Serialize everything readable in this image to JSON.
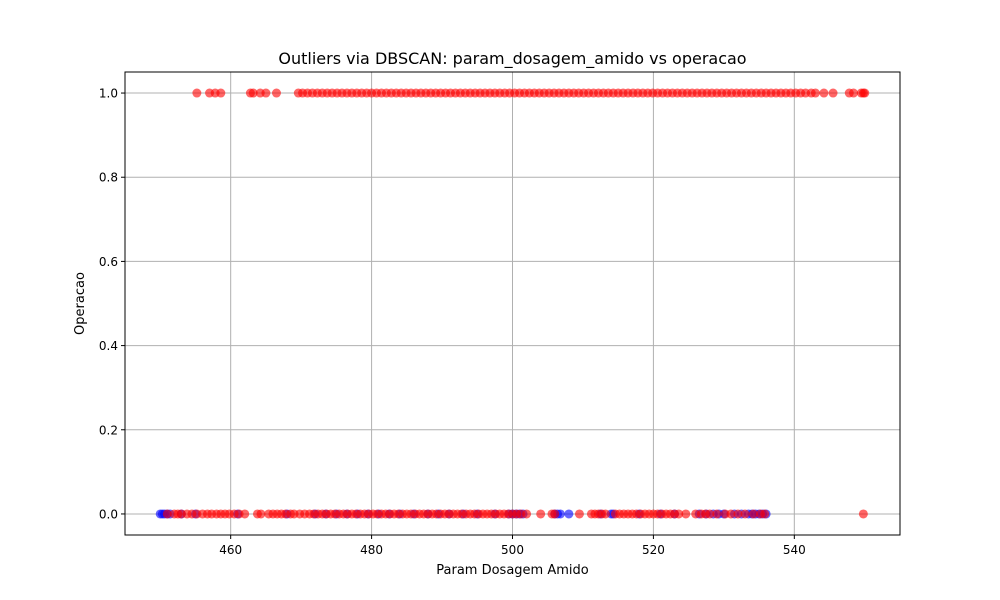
{
  "chart_data": {
    "type": "scatter",
    "title": "Outliers via DBSCAN: param_dosagem_amido vs operacao",
    "xlabel": "Param Dosagem Amido",
    "ylabel": "Operacao",
    "xlim": [
      445,
      555
    ],
    "ylim": [
      -0.05,
      1.05
    ],
    "xticks": [
      460,
      480,
      500,
      520,
      540
    ],
    "yticks": [
      0.0,
      0.2,
      0.4,
      0.6,
      0.8,
      1.0
    ],
    "ytick_labels": [
      "0.0",
      "0.2",
      "0.4",
      "0.6",
      "0.8",
      "1.0"
    ],
    "grid": true,
    "colors": {
      "blue": "#0000ff",
      "red": "#ff0000",
      "alpha": 0.6
    },
    "series": [
      {
        "color": "blue",
        "x": [
          450.0,
          450.3,
          450.6,
          451.0,
          451.4,
          453.0,
          455.0,
          461.0,
          468.0,
          472.0,
          473.5,
          475.0,
          476.5,
          478.0,
          479.5,
          481.0,
          482.5,
          484.0,
          486.0,
          488.0,
          489.5,
          491.0,
          493.0,
          495.0,
          497.5,
          499.5,
          500.0,
          500.5,
          501.0,
          501.5,
          506.0,
          506.4,
          506.8,
          508.0,
          512.5,
          514.0,
          514.3,
          518.0,
          521.0,
          523.0,
          526.5,
          527.5,
          528.5,
          529.3,
          530.0,
          531.5,
          532.5,
          533.5,
          534.0,
          534.5,
          535.0,
          535.5,
          536.0
        ],
        "y": [
          0,
          0,
          0,
          0,
          0,
          0,
          0,
          0,
          0,
          0,
          0,
          0,
          0,
          0,
          0,
          0,
          0,
          0,
          0,
          0,
          0,
          0,
          0,
          0,
          0,
          0,
          0,
          0,
          0,
          0,
          0,
          0,
          0,
          0,
          0,
          0,
          0,
          0,
          0,
          0,
          0,
          0,
          0,
          0,
          0,
          0,
          0,
          0,
          0,
          0,
          0,
          0,
          0
        ]
      },
      {
        "color": "red",
        "x": [
          451.0,
          452.0,
          452.5,
          453.0,
          453.8,
          454.5,
          455.2,
          456.0,
          456.7,
          457.3,
          458.0,
          458.6,
          459.2,
          459.8,
          460.5,
          461.2,
          462.0,
          463.8,
          464.3,
          465.4,
          466.0,
          466.6,
          467.2,
          467.8,
          468.5,
          469.0,
          469.8,
          470.5,
          471.2,
          471.8,
          472.4,
          473.0,
          473.6,
          474.2,
          474.8,
          475.4,
          476.0,
          476.6,
          477.2,
          477.8,
          478.4,
          479.0,
          479.6,
          480.2,
          480.8,
          481.4,
          482.0,
          482.6,
          483.2,
          483.8,
          484.4,
          485.0,
          485.6,
          486.2,
          486.8,
          487.4,
          488.0,
          488.6,
          489.2,
          489.8,
          490.4,
          491.0,
          491.6,
          492.2,
          492.8,
          493.4,
          494.0,
          494.6,
          495.2,
          495.8,
          496.4,
          497.0,
          497.6,
          498.2,
          498.8,
          499.4,
          500.0,
          500.6,
          501.2,
          502.0,
          504.0,
          505.6,
          506.0,
          509.5,
          511.2,
          511.7,
          512.2,
          512.7,
          513.2,
          514.6,
          515.2,
          515.8,
          516.4,
          517.0,
          517.6,
          518.2,
          518.8,
          519.4,
          520.0,
          520.6,
          521.2,
          521.8,
          522.4,
          523.0,
          523.6,
          524.6,
          526.0,
          526.8,
          527.4,
          528.0,
          529.0,
          530.2,
          531.0,
          532.0,
          533.0,
          534.2,
          535.2,
          535.8,
          549.8
        ],
        "y": [
          0,
          0,
          0,
          0,
          0,
          0,
          0,
          0,
          0,
          0,
          0,
          0,
          0,
          0,
          0,
          0,
          0,
          0,
          0,
          0,
          0,
          0,
          0,
          0,
          0,
          0,
          0,
          0,
          0,
          0,
          0,
          0,
          0,
          0,
          0,
          0,
          0,
          0,
          0,
          0,
          0,
          0,
          0,
          0,
          0,
          0,
          0,
          0,
          0,
          0,
          0,
          0,
          0,
          0,
          0,
          0,
          0,
          0,
          0,
          0,
          0,
          0,
          0,
          0,
          0,
          0,
          0,
          0,
          0,
          0,
          0,
          0,
          0,
          0,
          0,
          0,
          0,
          0,
          0,
          0,
          0,
          0,
          0,
          0,
          0,
          0,
          0,
          0,
          0,
          0,
          0,
          0,
          0,
          0,
          0,
          0,
          0,
          0,
          0,
          0,
          0,
          0,
          0,
          0,
          0,
          0,
          0,
          0,
          0,
          0,
          0,
          0,
          0,
          0,
          0,
          0,
          0,
          0,
          0
        ]
      },
      {
        "color": "red",
        "x": [
          455.2,
          457.0,
          457.8,
          458.6,
          462.8,
          463.2,
          464.2,
          465.0,
          466.5,
          469.6,
          470.2,
          470.9,
          471.6,
          472.3,
          473.0,
          473.7,
          474.4,
          475.1,
          475.8,
          476.5,
          477.2,
          477.9,
          478.6,
          479.3,
          480.0,
          480.7,
          481.4,
          482.1,
          482.8,
          483.5,
          484.2,
          484.9,
          485.6,
          486.3,
          487.0,
          487.7,
          488.4,
          489.1,
          489.8,
          490.5,
          491.2,
          491.9,
          492.6,
          493.3,
          494.0,
          494.7,
          495.4,
          496.1,
          496.8,
          497.5,
          498.2,
          498.9,
          499.6,
          500.3,
          501.0,
          501.7,
          502.4,
          503.1,
          503.8,
          504.5,
          505.2,
          505.9,
          506.6,
          507.3,
          508.0,
          508.7,
          509.4,
          510.1,
          510.8,
          511.5,
          512.2,
          512.9,
          513.6,
          514.3,
          515.0,
          515.7,
          516.4,
          517.1,
          517.8,
          518.5,
          519.2,
          519.9,
          520.6,
          521.3,
          522.0,
          522.7,
          523.4,
          524.1,
          524.8,
          525.5,
          526.2,
          526.9,
          527.6,
          528.3,
          529.0,
          529.7,
          530.4,
          531.1,
          531.8,
          532.5,
          533.2,
          533.9,
          534.6,
          535.3,
          536.0,
          536.7,
          537.4,
          538.1,
          538.8,
          539.5,
          540.2,
          540.9,
          541.6,
          542.4,
          543.0,
          544.2,
          545.5,
          547.8,
          548.4,
          549.5,
          549.8,
          550.0
        ],
        "y": [
          1,
          1,
          1,
          1,
          1,
          1,
          1,
          1,
          1,
          1,
          1,
          1,
          1,
          1,
          1,
          1,
          1,
          1,
          1,
          1,
          1,
          1,
          1,
          1,
          1,
          1,
          1,
          1,
          1,
          1,
          1,
          1,
          1,
          1,
          1,
          1,
          1,
          1,
          1,
          1,
          1,
          1,
          1,
          1,
          1,
          1,
          1,
          1,
          1,
          1,
          1,
          1,
          1,
          1,
          1,
          1,
          1,
          1,
          1,
          1,
          1,
          1,
          1,
          1,
          1,
          1,
          1,
          1,
          1,
          1,
          1,
          1,
          1,
          1,
          1,
          1,
          1,
          1,
          1,
          1,
          1,
          1,
          1,
          1,
          1,
          1,
          1,
          1,
          1,
          1,
          1,
          1,
          1,
          1,
          1,
          1,
          1,
          1,
          1,
          1,
          1,
          1,
          1,
          1,
          1,
          1,
          1,
          1,
          1,
          1,
          1,
          1,
          1,
          1,
          1,
          1,
          1,
          1,
          1,
          1,
          1,
          1
        ]
      }
    ]
  }
}
